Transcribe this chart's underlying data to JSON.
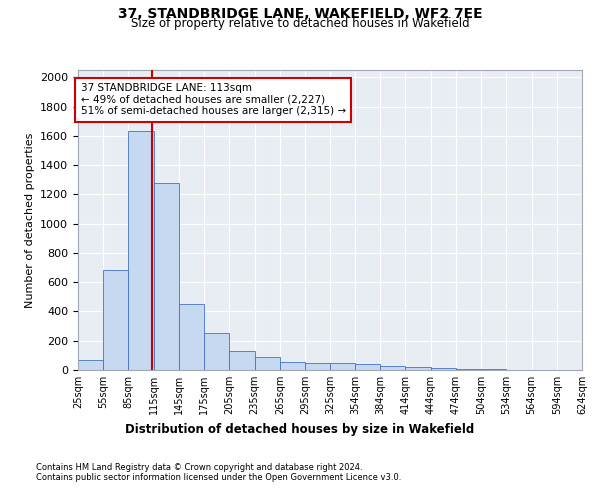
{
  "title1": "37, STANDBRIDGE LANE, WAKEFIELD, WF2 7EE",
  "title2": "Size of property relative to detached houses in Wakefield",
  "xlabel": "Distribution of detached houses by size in Wakefield",
  "ylabel": "Number of detached properties",
  "footnote1": "Contains HM Land Registry data © Crown copyright and database right 2024.",
  "footnote2": "Contains public sector information licensed under the Open Government Licence v3.0.",
  "annotation_line1": "37 STANDBRIDGE LANE: 113sqm",
  "annotation_line2": "← 49% of detached houses are smaller (2,227)",
  "annotation_line3": "51% of semi-detached houses are larger (2,315) →",
  "property_size": 113,
  "bin_edges": [
    25,
    55,
    85,
    115,
    145,
    175,
    205,
    235,
    265,
    295,
    325,
    354,
    384,
    414,
    444,
    474,
    504,
    534,
    564,
    594,
    624
  ],
  "bar_heights": [
    65,
    680,
    1630,
    1280,
    450,
    250,
    130,
    90,
    55,
    45,
    45,
    40,
    28,
    20,
    15,
    10,
    5,
    3,
    2,
    1
  ],
  "bar_color": "#c6d9f0",
  "bar_edge_color": "#4472c4",
  "red_line_color": "#cc0000",
  "annotation_box_color": "#cc0000",
  "grid_color": "#d0d8e4",
  "bg_color": "#e8edf4",
  "ylim": [
    0,
    2050
  ],
  "yticks": [
    0,
    200,
    400,
    600,
    800,
    1000,
    1200,
    1400,
    1600,
    1800,
    2000
  ]
}
